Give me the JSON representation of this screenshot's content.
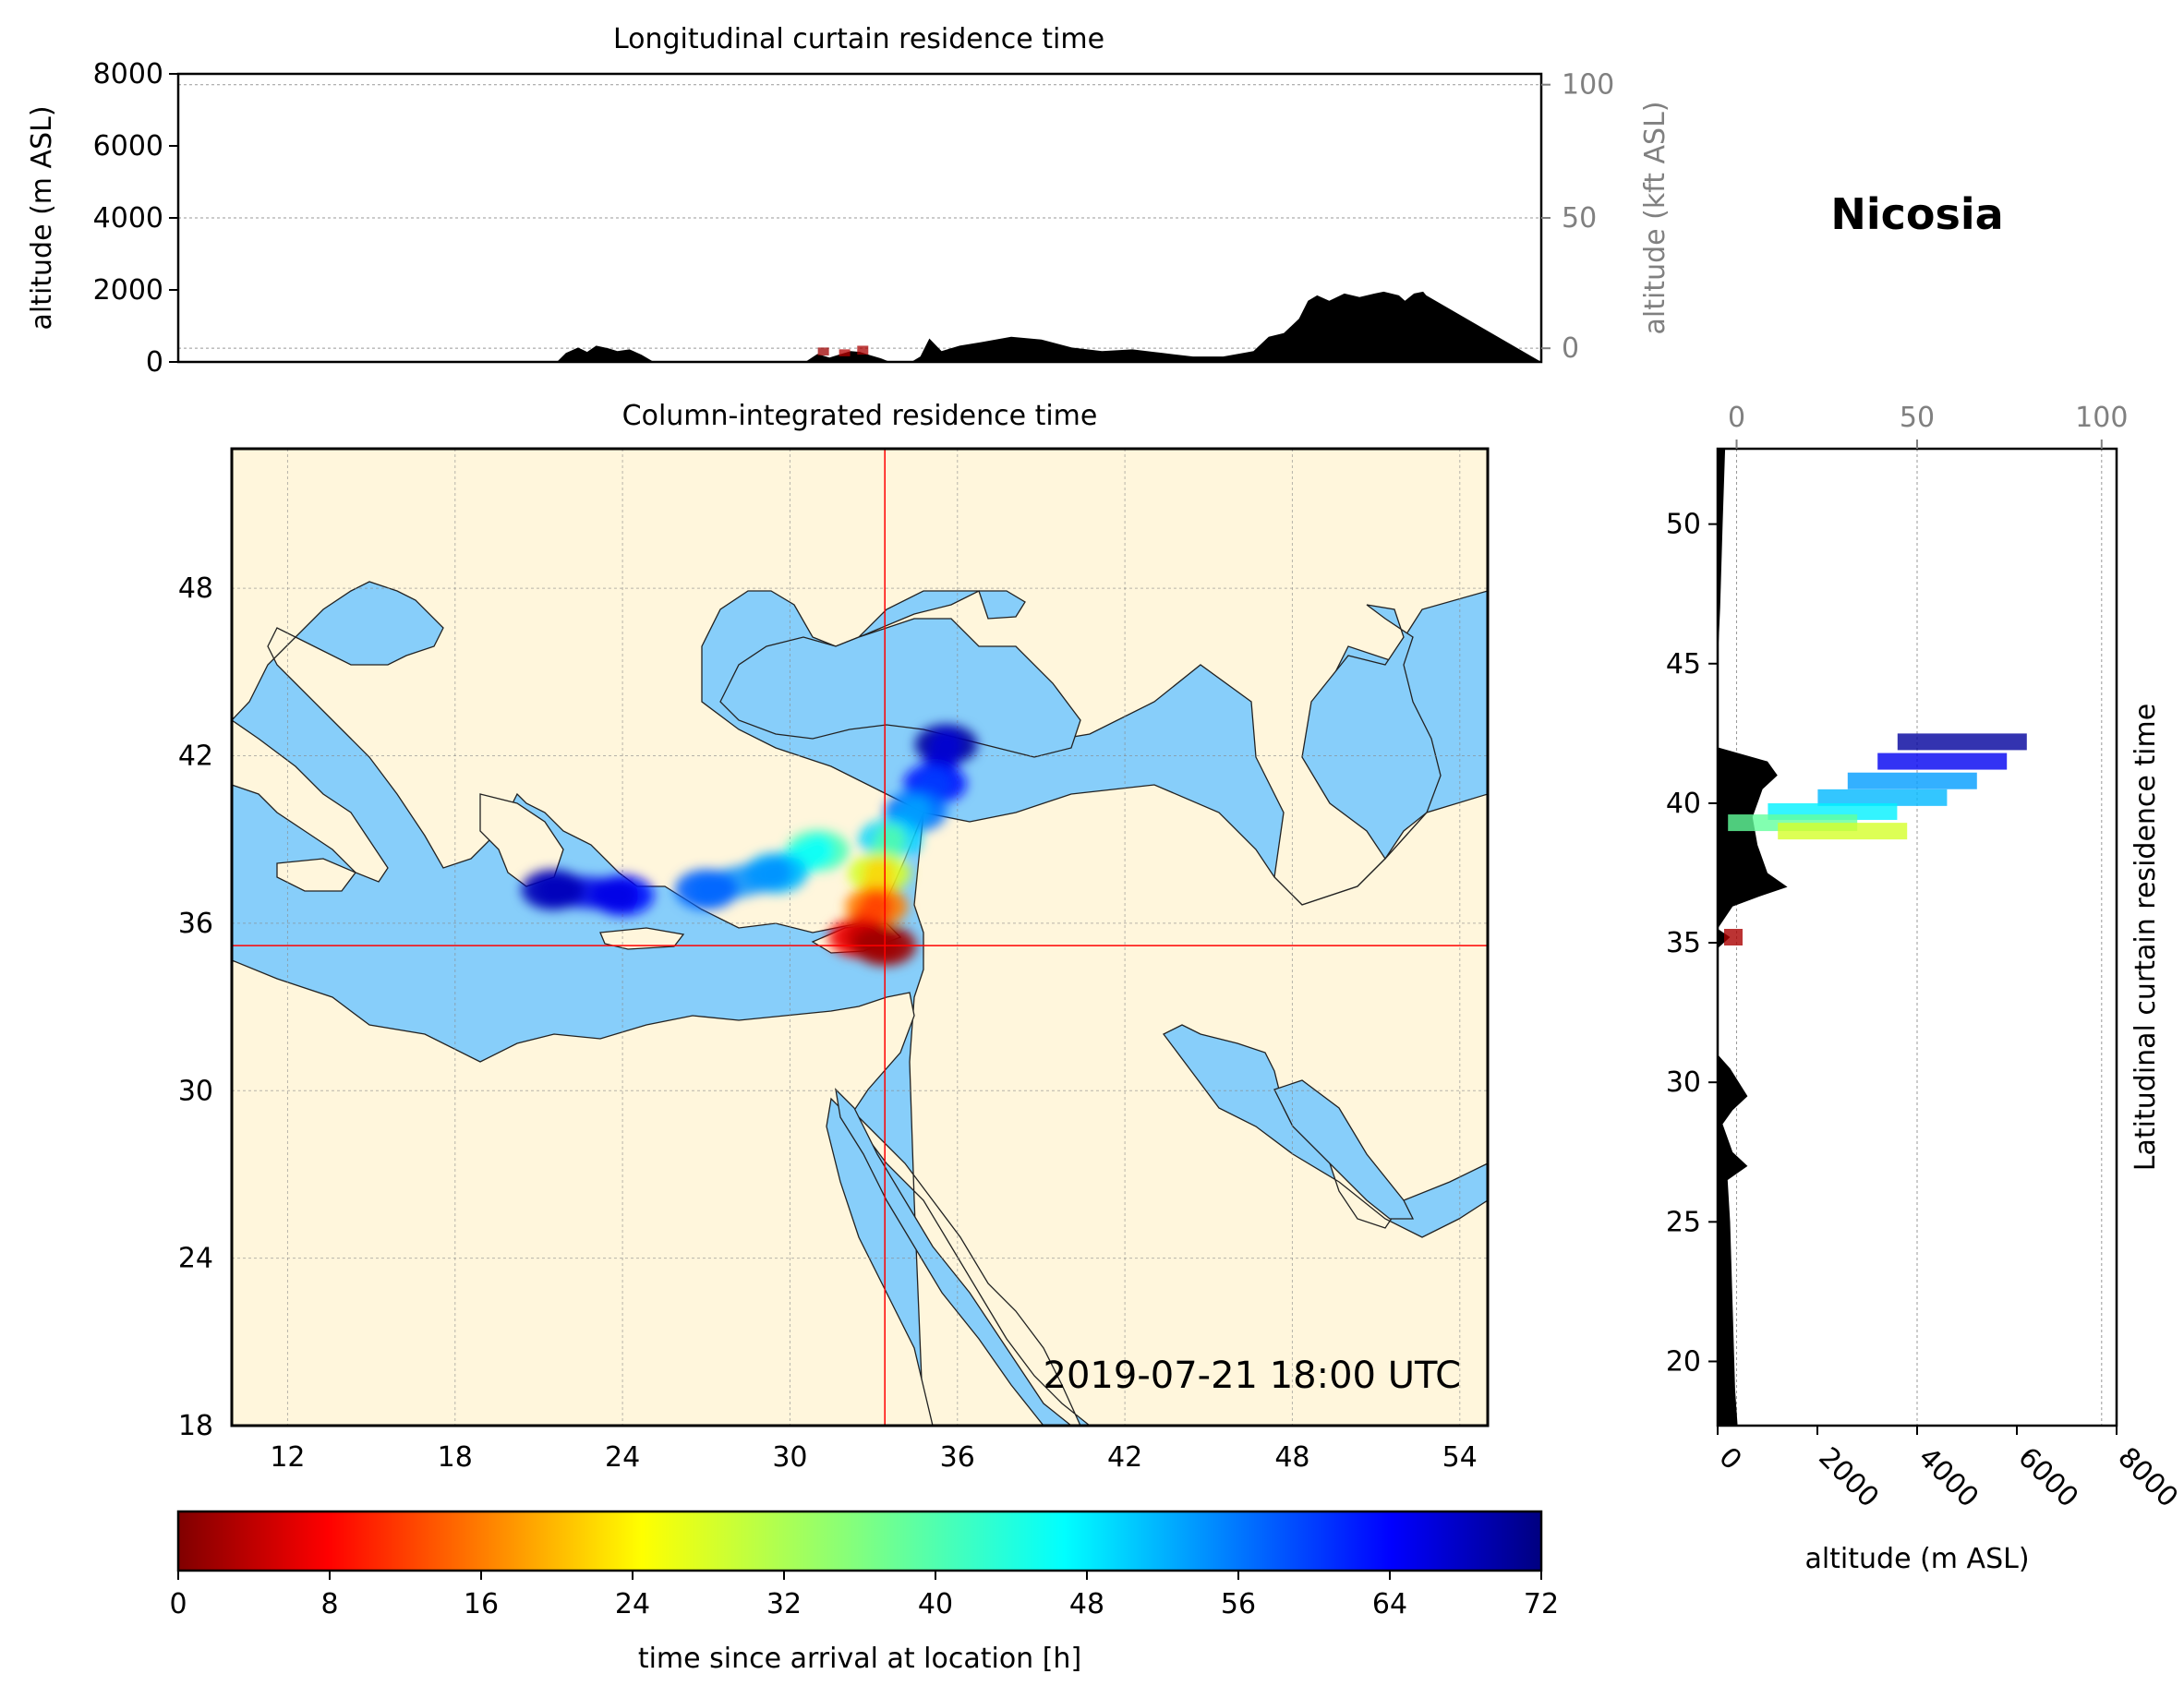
{
  "location": "Nicosia",
  "timestamp": "2019-07-21 18:00 UTC",
  "colors": {
    "sea": "#87cefa",
    "land": "#fff6dc",
    "crosshair": "#ff0000",
    "terrain": "#000000"
  },
  "chart_data": [
    {
      "id": "longitudinal_curtain",
      "type": "area",
      "title": "Longitudinal curtain residence time",
      "ylabel": "altitude (m ASL)",
      "ylabel_right": "altitude (kft ASL)",
      "ylim": [
        0,
        8000
      ],
      "yticks": [
        "0",
        "2000",
        "4000",
        "6000",
        "8000"
      ],
      "yticks_right": [
        "0",
        "50",
        "100"
      ],
      "xlim": [
        10.5,
        55.5
      ],
      "terrain": {
        "lon": [
          10.5,
          23.0,
          23.3,
          23.7,
          24.0,
          24.3,
          24.7,
          25.0,
          25.4,
          25.8,
          26.2,
          31.2,
          31.6,
          32.0,
          32.3,
          32.7,
          33.0,
          33.3,
          33.7,
          34.0,
          34.7,
          35.0,
          35.3,
          35.7,
          36.3,
          37.0,
          38.0,
          39.0,
          40.0,
          41.0,
          42.0,
          43.0,
          44.0,
          45.0,
          46.0,
          46.5,
          47.0,
          47.5,
          47.8,
          48.1,
          48.5,
          49.0,
          49.5,
          50.0,
          50.3,
          50.8,
          51.0,
          51.3,
          51.6,
          51.7,
          55.5
        ],
        "altitude": [
          0,
          0,
          250,
          400,
          280,
          450,
          380,
          300,
          350,
          200,
          0,
          0,
          220,
          120,
          200,
          300,
          280,
          200,
          100,
          0,
          0,
          150,
          650,
          300,
          450,
          550,
          700,
          620,
          400,
          300,
          350,
          250,
          150,
          150,
          300,
          700,
          800,
          1200,
          1700,
          1850,
          1700,
          1900,
          1800,
          1900,
          1950,
          1850,
          1700,
          1900,
          1950,
          1850,
          0
        ]
      },
      "residence_blobs": [
        {
          "lon": 31.8,
          "altitude": 400,
          "time_h": 2
        },
        {
          "lon": 32.5,
          "altitude": 350,
          "time_h": 4
        },
        {
          "lon": 33.1,
          "altitude": 450,
          "time_h": 3
        }
      ]
    },
    {
      "id": "column_integrated_map",
      "type": "map",
      "title": "Column-integrated residence time",
      "xlim": [
        10,
        55
      ],
      "ylim": [
        18,
        53
      ],
      "xticks": [
        "12",
        "18",
        "24",
        "30",
        "36",
        "42",
        "48",
        "54"
      ],
      "yticks": [
        "18",
        "24",
        "30",
        "36",
        "42",
        "48"
      ],
      "crosshair": {
        "lon": 33.4,
        "lat": 35.2
      },
      "plume": [
        {
          "lon": 35.6,
          "lat": 42.4,
          "time_h": 70
        },
        {
          "lon": 35.2,
          "lat": 41.0,
          "time_h": 62
        },
        {
          "lon": 34.5,
          "lat": 40.0,
          "time_h": 55
        },
        {
          "lon": 33.6,
          "lat": 39.0,
          "time_h": 48
        },
        {
          "lon": 33.2,
          "lat": 37.8,
          "time_h": 30
        },
        {
          "lon": 33.1,
          "lat": 36.6,
          "time_h": 18
        },
        {
          "lon": 32.5,
          "lat": 35.5,
          "time_h": 8
        },
        {
          "lon": 33.4,
          "lat": 35.2,
          "time_h": 2
        },
        {
          "lon": 31.0,
          "lat": 38.6,
          "time_h": 40
        },
        {
          "lon": 29.5,
          "lat": 37.8,
          "time_h": 50
        },
        {
          "lon": 27.0,
          "lat": 37.2,
          "time_h": 56
        },
        {
          "lon": 24.0,
          "lat": 37.0,
          "time_h": 62
        },
        {
          "lon": 21.5,
          "lat": 37.2,
          "time_h": 68
        }
      ]
    },
    {
      "id": "latitudinal_curtain",
      "type": "area",
      "title": "Latitudinal curtain residence time",
      "xlabel": "altitude (m ASL)",
      "xlabel_top": "",
      "xlim": [
        0,
        8000
      ],
      "xticks": [
        "0",
        "2000",
        "4000",
        "6000",
        "8000"
      ],
      "xticks_top": [
        "0",
        "50",
        "100"
      ],
      "ylim": [
        17.7,
        52.7
      ],
      "yticks": [
        "20",
        "25",
        "30",
        "35",
        "40",
        "45",
        "50"
      ],
      "terrain": {
        "lat": [
          52.7,
          50.0,
          47.0,
          45.0,
          43.5,
          42.0,
          41.5,
          41.0,
          40.5,
          39.5,
          38.5,
          37.5,
          37.0,
          36.7,
          36.3,
          35.5,
          35.2,
          34.8,
          33.0,
          31.0,
          30.5,
          29.5,
          29.0,
          28.5,
          27.5,
          27.0,
          26.5,
          25.0,
          22.0,
          19.0,
          17.7
        ],
        "altitude": [
          150,
          100,
          50,
          0,
          0,
          0,
          1000,
          1200,
          900,
          700,
          800,
          1000,
          1400,
          900,
          300,
          0,
          250,
          0,
          0,
          0,
          250,
          600,
          300,
          100,
          300,
          600,
          200,
          250,
          300,
          350,
          400
        ]
      },
      "residence_blobs": [
        {
          "lat": 42.2,
          "altitude": 6200,
          "time_h": 70
        },
        {
          "lat": 41.5,
          "altitude": 5800,
          "time_h": 64
        },
        {
          "lat": 40.8,
          "altitude": 5200,
          "time_h": 52
        },
        {
          "lat": 40.2,
          "altitude": 4600,
          "time_h": 50
        },
        {
          "lat": 39.7,
          "altitude": 3600,
          "time_h": 46
        },
        {
          "lat": 39.3,
          "altitude": 2800,
          "time_h": 38
        },
        {
          "lat": 39.0,
          "altitude": 3800,
          "time_h": 30
        },
        {
          "lat": 35.2,
          "altitude": 500,
          "time_h": 3
        }
      ]
    }
  ],
  "colorbar": {
    "label": "time since arrival at location [h]",
    "vmin": 0,
    "vmax": 72,
    "ticks": [
      "0",
      "8",
      "16",
      "24",
      "32",
      "40",
      "48",
      "56",
      "64",
      "72"
    ]
  }
}
